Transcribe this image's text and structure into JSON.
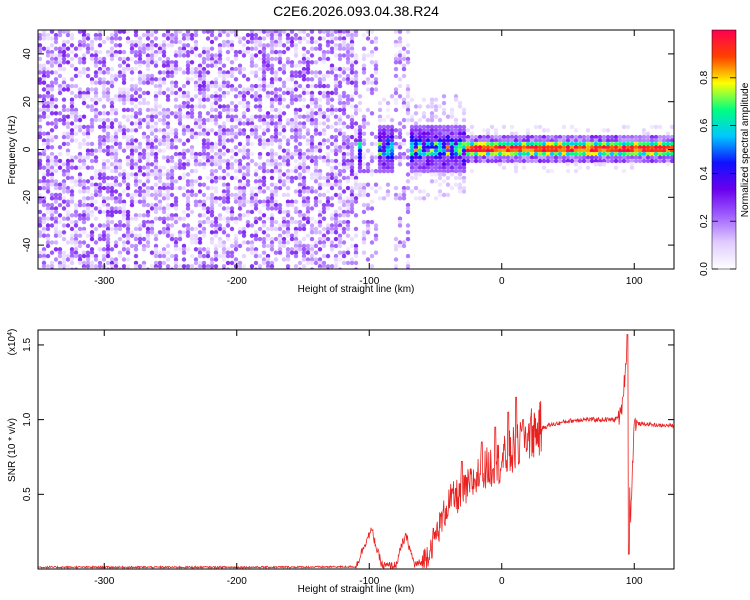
{
  "title": "C2E6.2026.093.04.38.R24",
  "chart_data": [
    {
      "type": "heatmap",
      "xlabel": "Height of straight line (km)",
      "ylabel": "Frequency (Hz)",
      "xlim": [
        -350,
        130
      ],
      "ylim": [
        -50,
        50
      ],
      "xticks": [
        -300,
        -200,
        -100,
        0,
        100
      ],
      "yticks": [
        -40,
        -20,
        0,
        20,
        40
      ],
      "colorbar": {
        "label": "Normalized spectral amplitude",
        "range": [
          0,
          1
        ],
        "ticks": [
          "0.0",
          "0.2",
          "0.4",
          "0.6",
          "0.8"
        ],
        "colors": [
          "#ffffff",
          "#e0ccff",
          "#a060ff",
          "#6a00ee",
          "#1010ff",
          "#00c8ff",
          "#00ff80",
          "#ffff00",
          "#ff4000",
          "#ff0050"
        ]
      },
      "features": {
        "noise_region_x": [
          -350,
          -110
        ],
        "gap_columns_x": [
          -100,
          -78
        ],
        "strong_band_x": [
          -30,
          130
        ],
        "band_center_frequency": 1
      }
    },
    {
      "type": "line",
      "xlabel": "Height of straight line (km)",
      "ylabel": "SNR (10 * v/v)",
      "yscale_note": "(x10^4)",
      "xlim": [
        -350,
        130
      ],
      "ylim": [
        0,
        1.6
      ],
      "xticks": [
        -300,
        -200,
        -100,
        0,
        100
      ],
      "yticks": [
        0.5,
        1.0,
        1.5
      ],
      "series": [
        {
          "color": "#e8201e",
          "x": [
            -350,
            -300,
            -250,
            -200,
            -150,
            -110,
            -102,
            -98,
            -94,
            -90,
            -80,
            -75,
            -72,
            -66,
            -60,
            -55,
            -50,
            -45,
            -40,
            -35,
            -30,
            -25,
            -20,
            -15,
            -10,
            -5,
            0,
            5,
            10,
            15,
            20,
            25,
            30,
            35,
            40,
            50,
            60,
            70,
            80,
            85,
            90,
            93,
            95,
            97,
            100,
            105,
            110,
            120,
            130
          ],
          "y": [
            0.012,
            0.012,
            0.012,
            0.012,
            0.013,
            0.015,
            0.2,
            0.26,
            0.12,
            0.02,
            0.02,
            0.17,
            0.22,
            0.03,
            0.04,
            0.12,
            0.22,
            0.33,
            0.45,
            0.48,
            0.5,
            0.55,
            0.6,
            0.65,
            0.68,
            0.7,
            0.72,
            0.76,
            0.8,
            0.86,
            0.9,
            0.92,
            0.94,
            0.96,
            0.97,
            0.99,
            1.0,
            1.0,
            1.0,
            1.0,
            1.03,
            1.3,
            1.55,
            0.3,
            0.98,
            0.97,
            0.97,
            0.96,
            0.96
          ],
          "spikes": [
            {
              "x": -30,
              "y": 0.72
            },
            {
              "x": -15,
              "y": 0.85
            },
            {
              "x": -5,
              "y": 0.95
            },
            {
              "x": 5,
              "y": 1.05
            },
            {
              "x": 11,
              "y": 1.15
            },
            {
              "x": 16,
              "y": 1.0
            },
            {
              "x": 95,
              "y": 1.57
            },
            {
              "x": 96,
              "y": 0.1
            }
          ]
        }
      ]
    }
  ]
}
